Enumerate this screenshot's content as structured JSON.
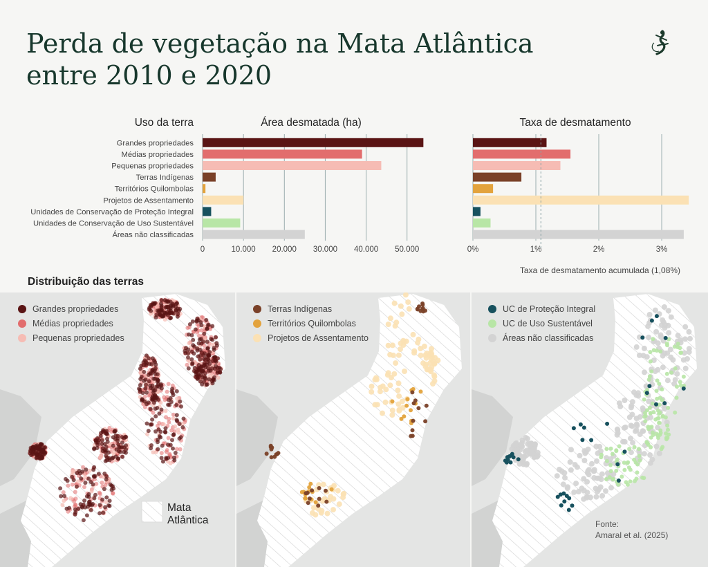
{
  "title": "Perda de vegetação na Mata Atlântica entre 2010 e 2020",
  "colors": {
    "title": "#17372c",
    "grandes": "#5a1414",
    "medias": "#e26d6d",
    "pequenas": "#f6bcb4",
    "indigenas": "#7a4128",
    "quilombolas": "#e3a33d",
    "assentamento": "#fbe1b4",
    "uc_protecao": "#17515e",
    "uc_uso": "#b8e6a6",
    "nao_classificadas": "#d3d3d3",
    "map_bg": "#e4e5e4",
    "biome": "#ffffff"
  },
  "chart_data": [
    {
      "type": "bar",
      "orientation": "horizontal",
      "title": "Área desmatada (ha)",
      "category_header": "Uso da terra",
      "categories": [
        "Grandes propriedades",
        "Médias propriedades",
        "Pequenas propriedades",
        "Terras Indígenas",
        "Territórios Quilombolas",
        "Projetos de Assentamento",
        "Unidades de Conservação de Proteção Integral",
        "Unidades de Conservação de Uso Sustentável",
        "Áreas não classificadas"
      ],
      "values": [
        54000,
        39000,
        43700,
        3200,
        700,
        10000,
        2100,
        9200,
        25000
      ],
      "xlim": [
        0,
        58000
      ],
      "xticks": [
        0,
        10000,
        20000,
        30000,
        40000,
        50000
      ],
      "xtick_labels": [
        "0",
        "10.000",
        "20.000",
        "30.000",
        "40.000",
        "50.000"
      ],
      "grid": true
    },
    {
      "type": "bar",
      "orientation": "horizontal",
      "title": "Taxa de desmatamento",
      "categories": [
        "Grandes propriedades",
        "Médias propriedades",
        "Pequenas propriedades",
        "Terras Indígenas",
        "Territórios Quilombolas",
        "Projetos de Assentamento",
        "Unidades de Conservação de Proteção Integral",
        "Unidades de Conservação de Uso Sustentável",
        "Áreas não classificadas"
      ],
      "values": [
        1.17,
        1.55,
        1.39,
        0.77,
        0.32,
        3.43,
        0.12,
        0.28,
        3.35
      ],
      "xlim": [
        0,
        3.45
      ],
      "xticks": [
        0,
        1,
        2,
        3
      ],
      "xtick_labels": [
        "0%",
        "1%",
        "2%",
        "3%"
      ],
      "grid": true,
      "reference_line": {
        "value": 1.08,
        "label": "Taxa de desmatamento acumulada (1,08%)"
      }
    }
  ],
  "maps": {
    "title": "Distribuição das terras",
    "biome_label_line1": "Mata",
    "biome_label_line2": "Atlântica",
    "panels": [
      {
        "legend": [
          "Grandes propriedades",
          "Médias propriedades",
          "Pequenas propriedades"
        ]
      },
      {
        "legend": [
          "Terras Indígenas",
          "Territórios Quilombolas",
          "Projetos de Assentamento"
        ]
      },
      {
        "legend": [
          "UC de Proteção Integral",
          "UC de Uso Sustentável",
          "Áreas não classificadas"
        ]
      }
    ]
  },
  "source_label": "Fonte:",
  "source_text": "Amaral et al. (2025)"
}
